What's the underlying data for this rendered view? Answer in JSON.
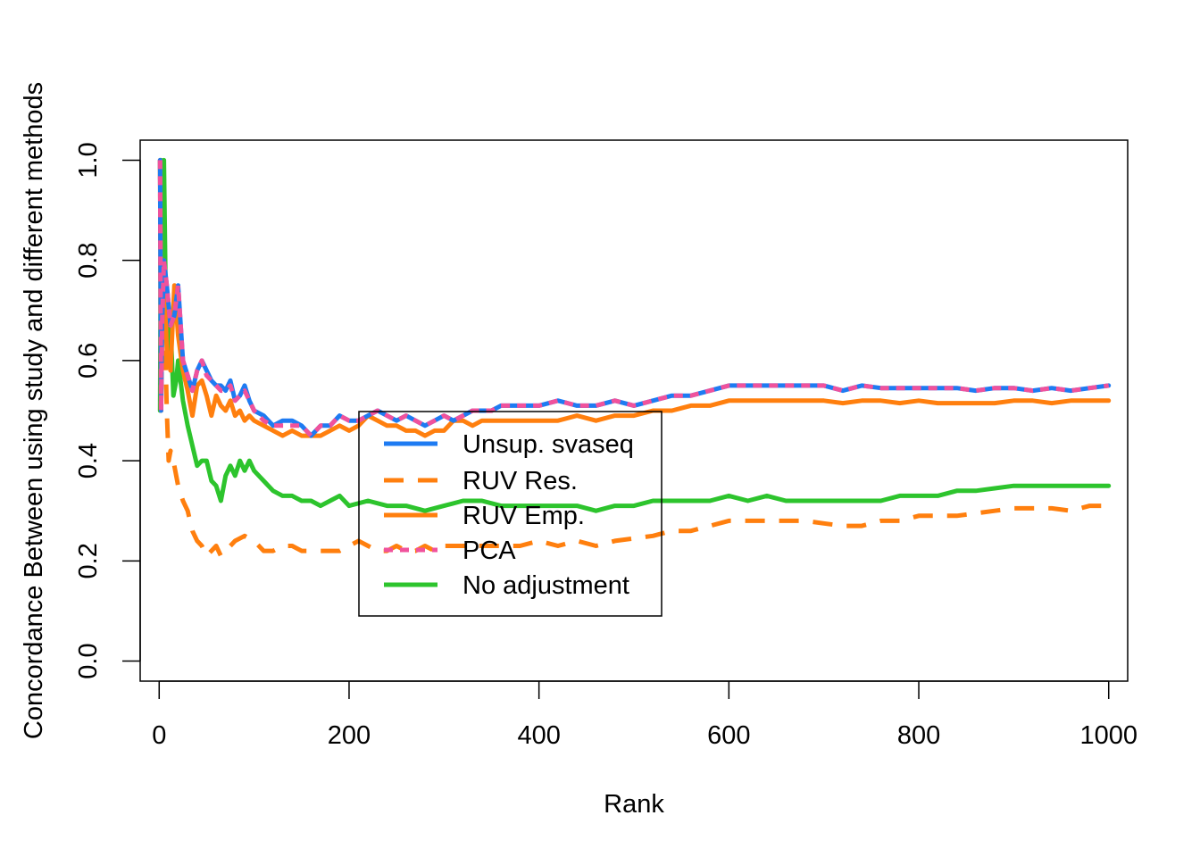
{
  "chart_data": {
    "type": "line",
    "title": "",
    "xlabel": "Rank",
    "ylabel": "Concordance Between using study and different methods",
    "xlim": [
      -20,
      1020
    ],
    "ylim": [
      -0.04,
      1.04
    ],
    "xticks": [
      0,
      200,
      400,
      600,
      800,
      1000
    ],
    "xtick_labels": [
      "0",
      "200",
      "400",
      "600",
      "800",
      "1000"
    ],
    "yticks": [
      0.0,
      0.2,
      0.4,
      0.6,
      0.8,
      1.0
    ],
    "ytick_labels": [
      "0.0",
      "0.2",
      "0.4",
      "0.6",
      "0.8",
      "1.0"
    ],
    "grid": false,
    "legend_position": "center",
    "series": [
      {
        "name": "Unsup. svaseq",
        "color": "#1E7BF2",
        "dash": "solid",
        "x": [
          1,
          2,
          3,
          5,
          8,
          12,
          16,
          20,
          25,
          30,
          35,
          40,
          45,
          50,
          55,
          60,
          65,
          70,
          75,
          80,
          85,
          90,
          95,
          100,
          110,
          120,
          130,
          140,
          150,
          160,
          170,
          180,
          190,
          200,
          210,
          220,
          230,
          240,
          250,
          260,
          270,
          280,
          290,
          300,
          310,
          320,
          330,
          340,
          350,
          360,
          380,
          400,
          420,
          440,
          460,
          480,
          500,
          520,
          540,
          560,
          580,
          600,
          620,
          640,
          660,
          680,
          700,
          720,
          740,
          760,
          780,
          800,
          820,
          840,
          860,
          880,
          900,
          920,
          940,
          960,
          980,
          1000
        ],
        "y": [
          1.0,
          0.5,
          0.67,
          0.8,
          0.75,
          0.67,
          0.69,
          0.75,
          0.6,
          0.57,
          0.54,
          0.58,
          0.6,
          0.58,
          0.56,
          0.55,
          0.55,
          0.54,
          0.56,
          0.52,
          0.53,
          0.55,
          0.52,
          0.5,
          0.49,
          0.47,
          0.48,
          0.48,
          0.47,
          0.45,
          0.47,
          0.47,
          0.49,
          0.48,
          0.48,
          0.49,
          0.5,
          0.49,
          0.48,
          0.49,
          0.48,
          0.47,
          0.48,
          0.49,
          0.48,
          0.49,
          0.5,
          0.5,
          0.5,
          0.51,
          0.51,
          0.51,
          0.52,
          0.51,
          0.51,
          0.52,
          0.51,
          0.52,
          0.53,
          0.53,
          0.54,
          0.55,
          0.55,
          0.55,
          0.55,
          0.55,
          0.55,
          0.54,
          0.55,
          0.545,
          0.545,
          0.545,
          0.545,
          0.545,
          0.54,
          0.545,
          0.545,
          0.54,
          0.545,
          0.54,
          0.545,
          0.55
        ]
      },
      {
        "name": "RUV Res.",
        "color": "#FF7F0E",
        "dash": "dashed",
        "x": [
          1,
          2,
          3,
          5,
          8,
          10,
          12,
          15,
          20,
          25,
          30,
          35,
          40,
          45,
          50,
          55,
          60,
          65,
          70,
          80,
          90,
          100,
          110,
          120,
          130,
          140,
          150,
          160,
          170,
          180,
          190,
          200,
          210,
          220,
          230,
          240,
          250,
          260,
          270,
          280,
          290,
          300,
          320,
          340,
          360,
          380,
          400,
          420,
          440,
          460,
          480,
          500,
          520,
          540,
          560,
          580,
          600,
          620,
          640,
          660,
          680,
          700,
          720,
          740,
          760,
          780,
          800,
          820,
          840,
          860,
          880,
          900,
          920,
          940,
          960,
          980,
          1000
        ],
        "y": [
          1.0,
          0.5,
          0.67,
          0.75,
          0.5,
          0.4,
          0.42,
          0.4,
          0.35,
          0.32,
          0.3,
          0.26,
          0.24,
          0.23,
          0.21,
          0.22,
          0.23,
          0.21,
          0.22,
          0.24,
          0.25,
          0.24,
          0.22,
          0.22,
          0.23,
          0.23,
          0.22,
          0.22,
          0.22,
          0.22,
          0.22,
          0.23,
          0.24,
          0.23,
          0.22,
          0.22,
          0.23,
          0.22,
          0.22,
          0.23,
          0.22,
          0.23,
          0.23,
          0.23,
          0.23,
          0.23,
          0.24,
          0.23,
          0.24,
          0.23,
          0.24,
          0.245,
          0.25,
          0.26,
          0.26,
          0.27,
          0.28,
          0.28,
          0.28,
          0.28,
          0.28,
          0.275,
          0.27,
          0.27,
          0.28,
          0.28,
          0.29,
          0.29,
          0.29,
          0.295,
          0.3,
          0.305,
          0.305,
          0.305,
          0.3,
          0.31,
          0.31
        ]
      },
      {
        "name": "RUV Emp.",
        "color": "#FF7F0E",
        "dash": "solid",
        "x": [
          1,
          2,
          3,
          5,
          8,
          12,
          16,
          20,
          25,
          30,
          35,
          40,
          45,
          50,
          55,
          60,
          65,
          70,
          75,
          80,
          85,
          90,
          95,
          100,
          110,
          120,
          130,
          140,
          150,
          160,
          170,
          180,
          190,
          200,
          210,
          220,
          230,
          240,
          250,
          260,
          270,
          280,
          290,
          300,
          310,
          320,
          330,
          340,
          350,
          360,
          380,
          400,
          420,
          440,
          460,
          480,
          500,
          520,
          540,
          560,
          580,
          600,
          620,
          640,
          660,
          680,
          700,
          720,
          740,
          760,
          780,
          800,
          820,
          840,
          860,
          880,
          900,
          920,
          940,
          960,
          980,
          1000
        ],
        "y": [
          1.0,
          0.5,
          0.67,
          0.8,
          0.62,
          0.58,
          0.75,
          0.65,
          0.58,
          0.54,
          0.49,
          0.55,
          0.56,
          0.53,
          0.49,
          0.53,
          0.51,
          0.5,
          0.52,
          0.49,
          0.5,
          0.48,
          0.49,
          0.48,
          0.47,
          0.46,
          0.45,
          0.46,
          0.45,
          0.45,
          0.45,
          0.46,
          0.47,
          0.46,
          0.47,
          0.49,
          0.48,
          0.47,
          0.47,
          0.46,
          0.46,
          0.45,
          0.46,
          0.46,
          0.48,
          0.48,
          0.47,
          0.48,
          0.48,
          0.48,
          0.48,
          0.48,
          0.48,
          0.49,
          0.48,
          0.49,
          0.49,
          0.5,
          0.5,
          0.51,
          0.51,
          0.52,
          0.52,
          0.52,
          0.52,
          0.52,
          0.52,
          0.515,
          0.52,
          0.52,
          0.515,
          0.52,
          0.515,
          0.515,
          0.515,
          0.515,
          0.52,
          0.52,
          0.515,
          0.52,
          0.52,
          0.52
        ]
      },
      {
        "name": "PCA",
        "color": "#F0529C",
        "dash": "dotted",
        "x": [
          1,
          2,
          3,
          5,
          8,
          12,
          16,
          20,
          25,
          30,
          35,
          40,
          45,
          50,
          55,
          60,
          65,
          70,
          75,
          80,
          85,
          90,
          95,
          100,
          110,
          120,
          130,
          140,
          150,
          160,
          170,
          180,
          190,
          200,
          210,
          220,
          230,
          240,
          250,
          260,
          270,
          280,
          290,
          300,
          310,
          320,
          330,
          340,
          350,
          360,
          380,
          400,
          420,
          440,
          460,
          480,
          500,
          520,
          540,
          560,
          580,
          600,
          620,
          640,
          660,
          680,
          700,
          720,
          740,
          760,
          780,
          800,
          820,
          840,
          860,
          880,
          900,
          920,
          940,
          960,
          980,
          1000
        ],
        "y": [
          1.0,
          0.5,
          0.67,
          0.8,
          0.75,
          0.67,
          0.69,
          0.75,
          0.6,
          0.57,
          0.54,
          0.58,
          0.6,
          0.57,
          0.56,
          0.55,
          0.54,
          0.54,
          0.55,
          0.52,
          0.53,
          0.54,
          0.52,
          0.5,
          0.48,
          0.47,
          0.47,
          0.47,
          0.47,
          0.45,
          0.47,
          0.47,
          0.49,
          0.48,
          0.48,
          0.49,
          0.5,
          0.49,
          0.48,
          0.49,
          0.48,
          0.47,
          0.48,
          0.49,
          0.48,
          0.49,
          0.5,
          0.5,
          0.5,
          0.51,
          0.51,
          0.51,
          0.52,
          0.51,
          0.51,
          0.52,
          0.51,
          0.52,
          0.53,
          0.53,
          0.54,
          0.55,
          0.55,
          0.55,
          0.55,
          0.55,
          0.55,
          0.54,
          0.55,
          0.545,
          0.545,
          0.545,
          0.545,
          0.545,
          0.54,
          0.545,
          0.545,
          0.54,
          0.545,
          0.54,
          0.545,
          0.55
        ]
      },
      {
        "name": "No adjustment",
        "color": "#2DC42D",
        "dash": "solid",
        "x": [
          1,
          2,
          3,
          5,
          7,
          10,
          12,
          15,
          18,
          20,
          25,
          30,
          35,
          40,
          45,
          50,
          55,
          60,
          65,
          70,
          75,
          80,
          85,
          90,
          95,
          100,
          110,
          120,
          130,
          140,
          150,
          160,
          170,
          180,
          190,
          200,
          220,
          240,
          260,
          280,
          300,
          320,
          340,
          360,
          380,
          400,
          420,
          440,
          460,
          480,
          500,
          520,
          540,
          560,
          580,
          600,
          620,
          640,
          660,
          680,
          700,
          720,
          740,
          760,
          780,
          800,
          820,
          840,
          860,
          880,
          900,
          920,
          940,
          960,
          980,
          1000
        ],
        "y": [
          0.5,
          1.0,
          0.67,
          1.0,
          0.71,
          0.6,
          0.67,
          0.53,
          0.56,
          0.6,
          0.52,
          0.47,
          0.43,
          0.39,
          0.4,
          0.4,
          0.36,
          0.35,
          0.32,
          0.37,
          0.39,
          0.37,
          0.4,
          0.38,
          0.4,
          0.38,
          0.36,
          0.34,
          0.33,
          0.33,
          0.32,
          0.32,
          0.31,
          0.32,
          0.33,
          0.31,
          0.32,
          0.31,
          0.31,
          0.3,
          0.31,
          0.32,
          0.32,
          0.31,
          0.31,
          0.31,
          0.31,
          0.31,
          0.3,
          0.31,
          0.31,
          0.32,
          0.32,
          0.32,
          0.32,
          0.33,
          0.32,
          0.33,
          0.32,
          0.32,
          0.32,
          0.32,
          0.32,
          0.32,
          0.33,
          0.33,
          0.33,
          0.34,
          0.34,
          0.345,
          0.35,
          0.35,
          0.35,
          0.35,
          0.35,
          0.35
        ]
      }
    ]
  }
}
